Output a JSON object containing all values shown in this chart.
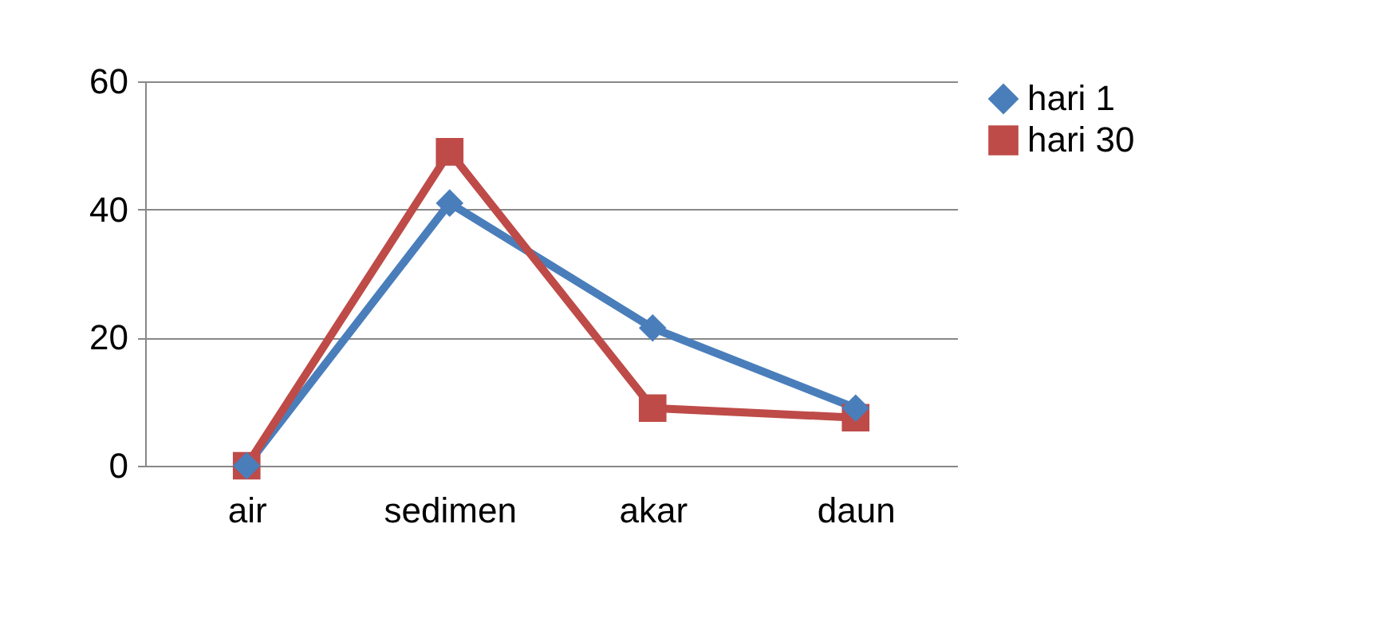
{
  "chart_data": {
    "type": "line",
    "categories": [
      "air",
      "sedimen",
      "akar",
      "daun"
    ],
    "series": [
      {
        "name": "hari 1",
        "color": "#4a7ebb",
        "marker": "diamond",
        "values": [
          0,
          41,
          21.5,
          9
        ]
      },
      {
        "name": "hari 30",
        "color": "#be4b48",
        "marker": "square",
        "values": [
          0,
          49,
          9,
          7.5
        ]
      }
    ],
    "ylim": [
      0,
      60
    ],
    "yticks": [
      0,
      20,
      40,
      60
    ],
    "grid": "y",
    "legend": "right"
  }
}
